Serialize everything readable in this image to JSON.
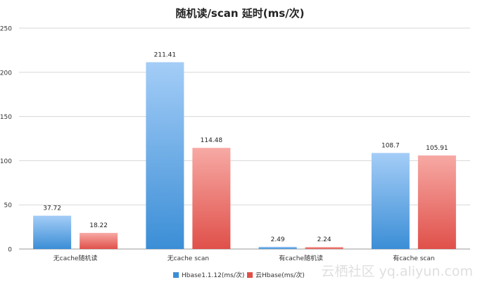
{
  "chart_data": {
    "type": "bar",
    "title": "随机读/scan 延时(ms/次)",
    "xlabel": "",
    "ylabel": "",
    "categories": [
      "无cache随机读",
      "无cache scan",
      "有cache随机读",
      "有cache scan"
    ],
    "series": [
      {
        "name": "Hbase1.1.12(ms/次)",
        "values": [
          37.72,
          211.41,
          2.49,
          108.7
        ],
        "value_labels": [
          "37.72",
          "211.41",
          "2.49",
          "108.7"
        ]
      },
      {
        "name": "云Hbase(ms/次)",
        "values": [
          18.22,
          114.48,
          2.24,
          105.91
        ],
        "value_labels": [
          "18.22",
          "114.48",
          "2.24",
          "105.91"
        ]
      }
    ],
    "ylim": [
      0,
      250
    ],
    "yticks": [
      0,
      50,
      100,
      150,
      200,
      250
    ],
    "grid": true,
    "legend": "bottom",
    "colors": {
      "series1_top": "#a4cdf7",
      "series1_bottom": "#3b8ed6",
      "series2_top": "#f7a9a4",
      "series2_bottom": "#e0504a",
      "grid": "#d7d7d7",
      "axis": "#9a9a9a"
    }
  },
  "watermark": "云栖社区 yq.aliyun.com"
}
